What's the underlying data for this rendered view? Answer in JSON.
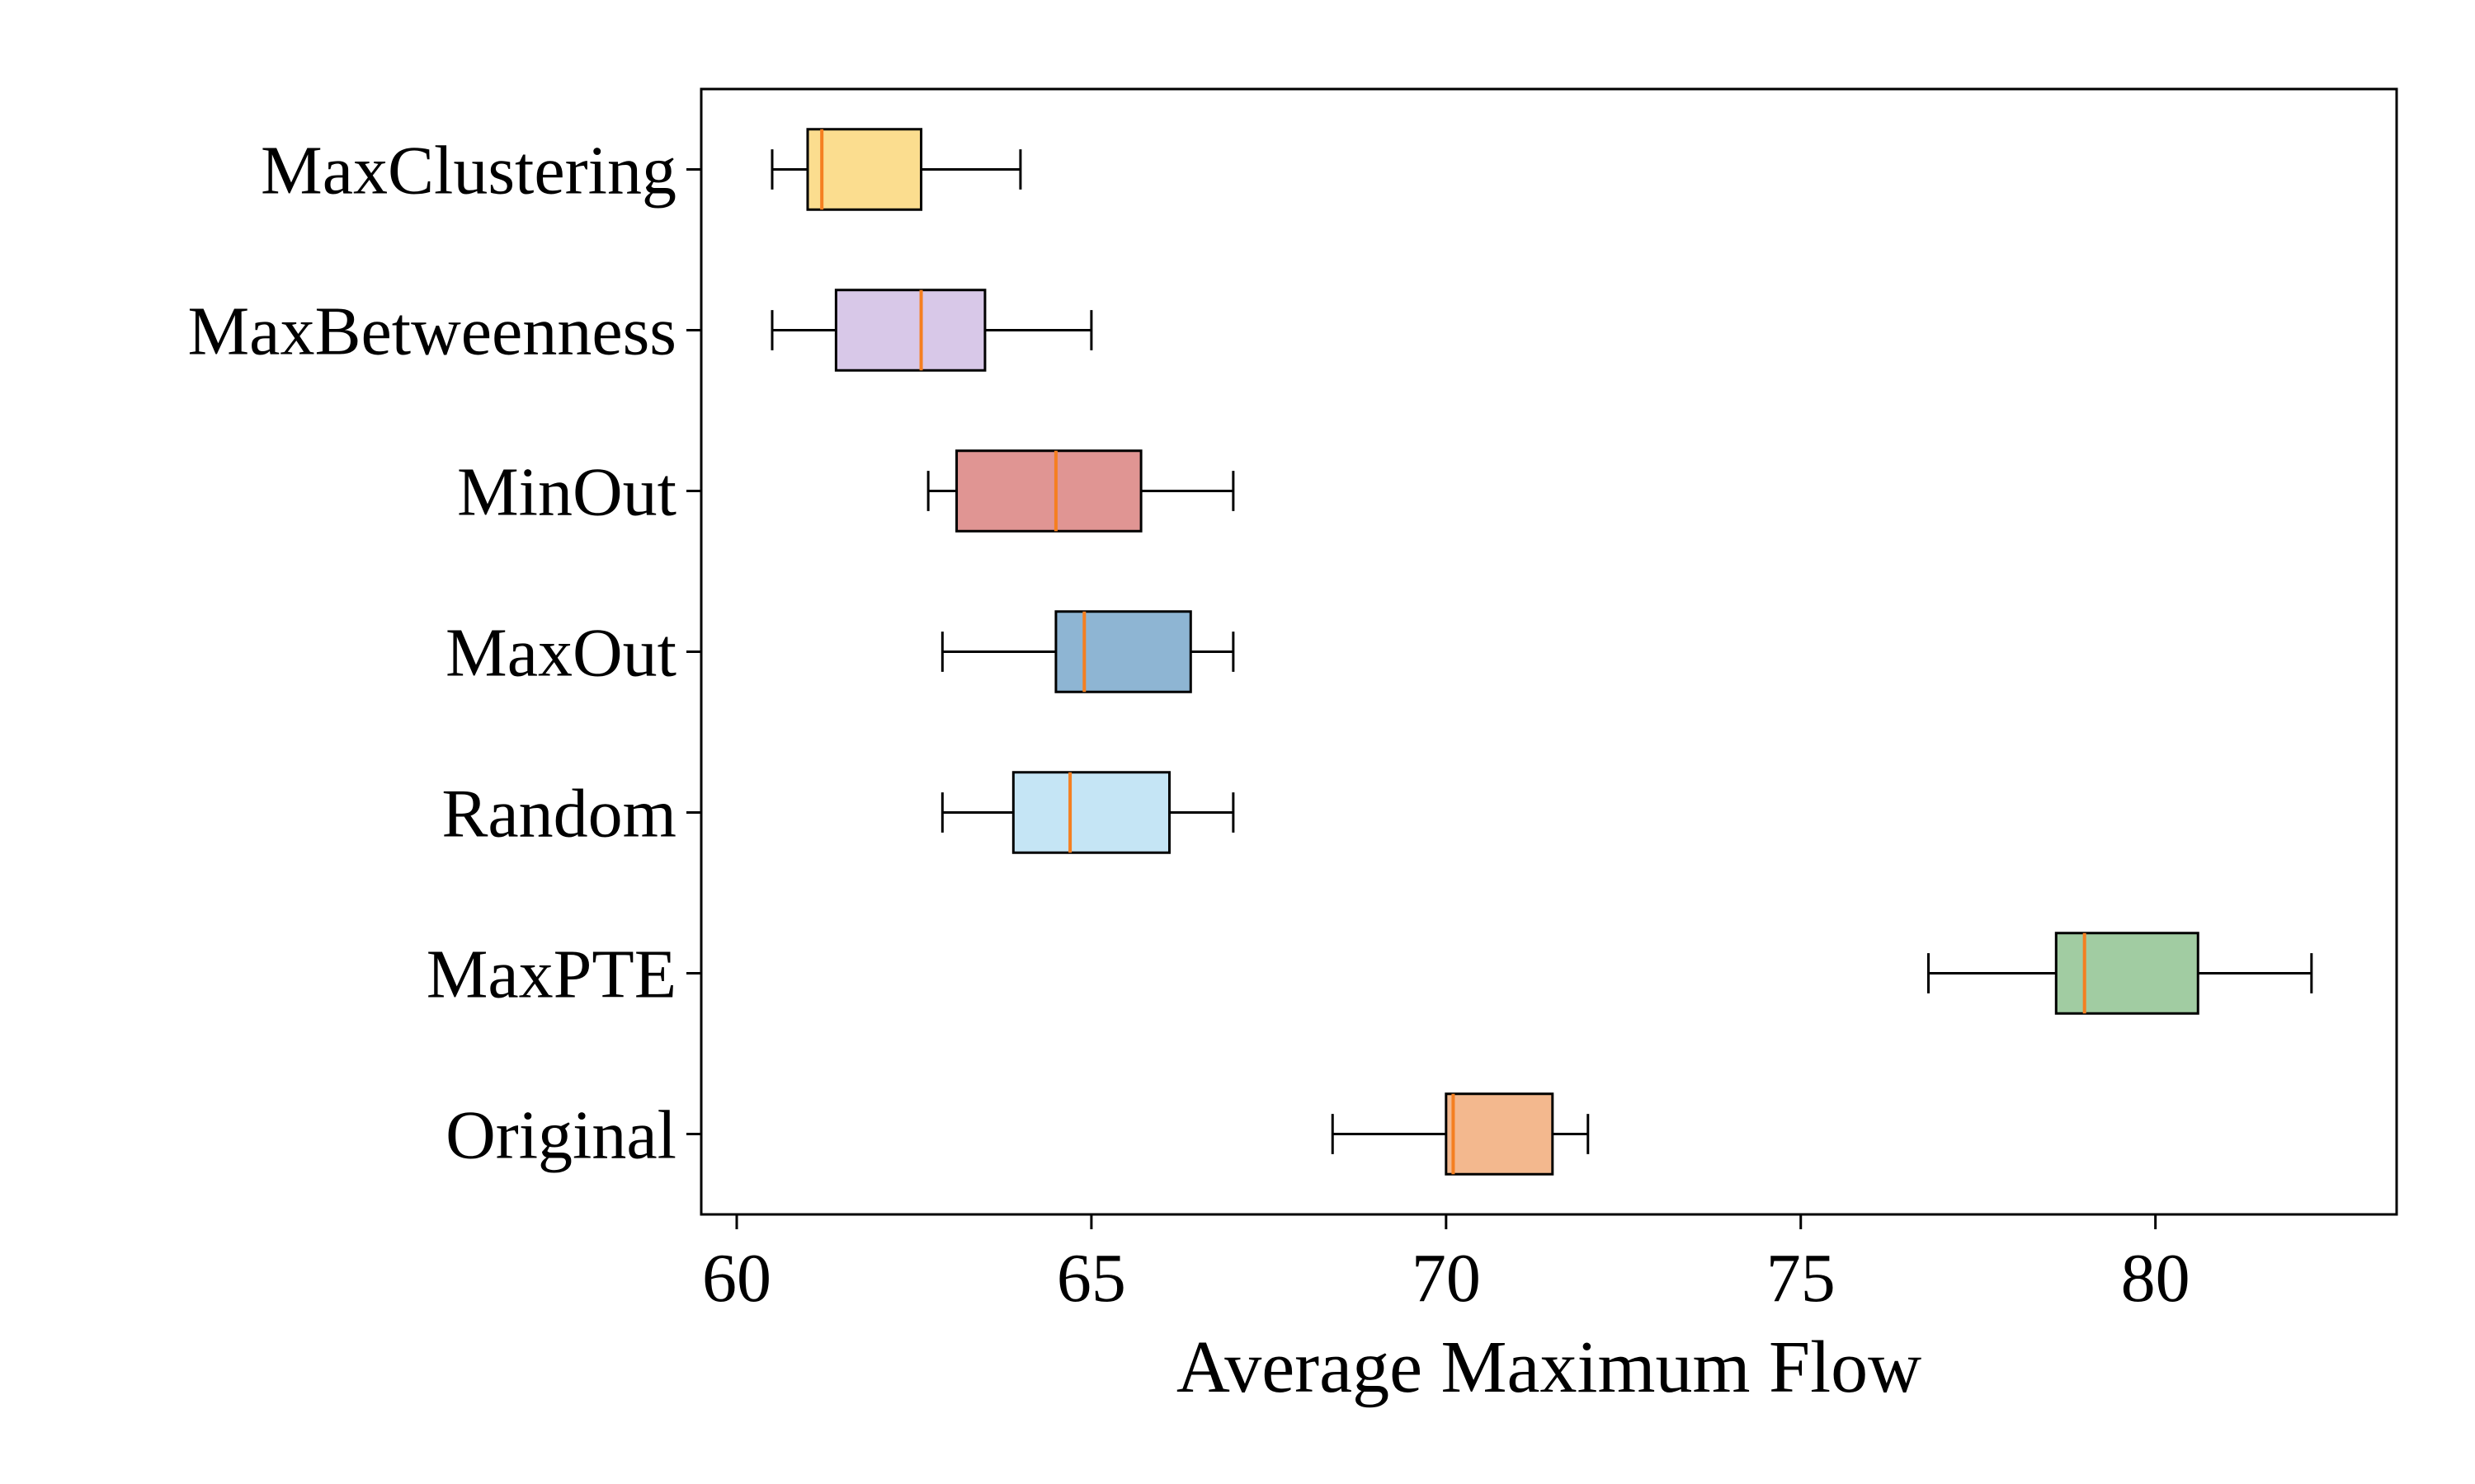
{
  "chart_data": {
    "type": "boxplot",
    "orientation": "horizontal",
    "title": "",
    "xlabel": "Average Maximum Flow",
    "ylabel": "",
    "xlim": [
      59.5,
      83.4
    ],
    "xticks": [
      60,
      65,
      70,
      75,
      80
    ],
    "grid": false,
    "series": [
      {
        "name": "MaxClustering",
        "whisker_low": 60.5,
        "q1": 61.0,
        "median": 61.2,
        "q3": 62.6,
        "whisker_high": 64.0,
        "color": "#fbdd8f"
      },
      {
        "name": "MaxBetweenness",
        "whisker_low": 60.5,
        "q1": 61.4,
        "median": 62.6,
        "q3": 63.5,
        "whisker_high": 65.0,
        "color": "#d8c8e8"
      },
      {
        "name": "MinOut",
        "whisker_low": 62.7,
        "q1": 63.1,
        "median": 64.5,
        "q3": 65.7,
        "whisker_high": 67.0,
        "color": "#e09593"
      },
      {
        "name": "MaxOut",
        "whisker_low": 62.9,
        "q1": 64.5,
        "median": 64.9,
        "q3": 66.4,
        "whisker_high": 67.0,
        "color": "#8eb5d3"
      },
      {
        "name": "Random",
        "whisker_low": 62.9,
        "q1": 63.9,
        "median": 64.7,
        "q3": 66.1,
        "whisker_high": 67.0,
        "color": "#c5e5f5"
      },
      {
        "name": "MaxPTE",
        "whisker_low": 76.8,
        "q1": 78.6,
        "median": 79.0,
        "q3": 80.6,
        "whisker_high": 82.2,
        "color": "#a1cca2"
      },
      {
        "name": "Original",
        "whisker_low": 68.4,
        "q1": 70.0,
        "median": 70.1,
        "q3": 71.5,
        "whisker_high": 72.0,
        "color": "#f3b88e"
      }
    ],
    "median_color": "#f57f20"
  }
}
